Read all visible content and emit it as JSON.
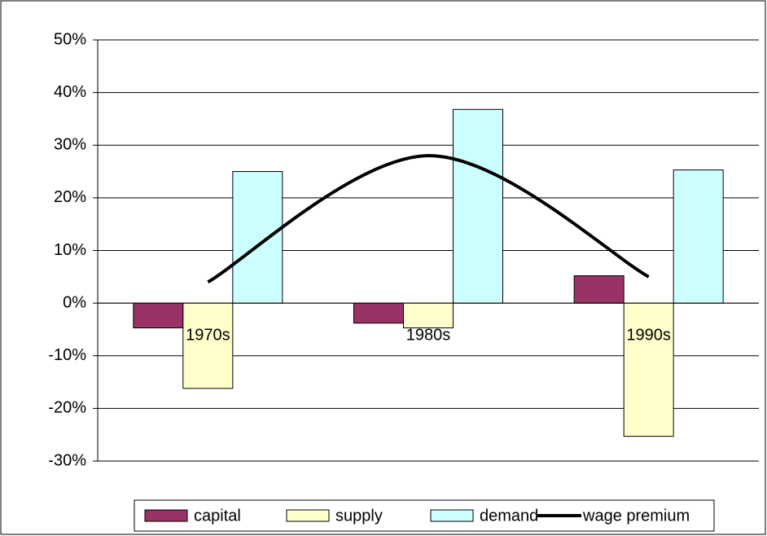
{
  "chart_data": {
    "type": "bar",
    "categories": [
      "1970s",
      "1980s",
      "1990s"
    ],
    "series": [
      {
        "name": "capital",
        "color": "#993366",
        "values": [
          -4.7,
          -3.8,
          5.2
        ]
      },
      {
        "name": "supply",
        "color": "#ffffcc",
        "values": [
          -16.2,
          -4.7,
          -25.3
        ]
      },
      {
        "name": "demand",
        "color": "#ccffff",
        "values": [
          25,
          36.8,
          25.3
        ]
      },
      {
        "name": "wage premium",
        "type": "line",
        "color": "#000000",
        "values": [
          4,
          28,
          5
        ]
      }
    ],
    "ylim": [
      -30,
      50
    ],
    "yticks": [
      {
        "value": -30,
        "label": "-30%"
      },
      {
        "value": -20,
        "label": "-20%"
      },
      {
        "value": -10,
        "label": "-10%"
      },
      {
        "value": 0,
        "label": "0%"
      },
      {
        "value": 10,
        "label": "10%"
      },
      {
        "value": 20,
        "label": "20%"
      },
      {
        "value": 30,
        "label": "30%"
      },
      {
        "value": 40,
        "label": "40%"
      },
      {
        "value": 50,
        "label": "50%"
      }
    ],
    "grid": true,
    "legend": "bottom"
  }
}
